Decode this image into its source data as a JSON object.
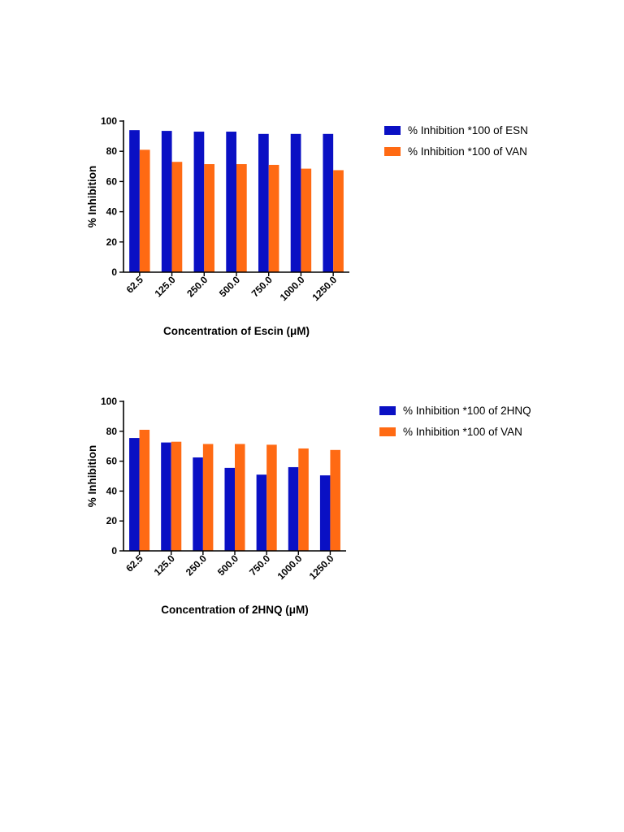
{
  "colors": {
    "series_a": "#0a10c4",
    "series_b": "#ff6a13",
    "axis": "#000000",
    "background": "#ffffff"
  },
  "chart_data": [
    {
      "type": "bar",
      "title": "",
      "xlabel": "Concentration of Escin (μM)",
      "ylabel": "% Inhibition",
      "ylim": [
        0,
        100
      ],
      "yticks": [
        "0",
        "20",
        "40",
        "60",
        "80",
        "100"
      ],
      "categories": [
        "62.5",
        "125.0",
        "250.0",
        "500.0",
        "750.0",
        "1000.0",
        "1250.0"
      ],
      "legend_position": "right",
      "series": [
        {
          "name": "% Inhibition *100 of ESN",
          "color": "#0a10c4",
          "values": [
            94,
            93.5,
            93,
            93,
            91.5,
            91.5,
            91.5
          ]
        },
        {
          "name": "% Inhibition *100 of VAN",
          "color": "#ff6a13",
          "values": [
            81,
            73,
            71.5,
            71.5,
            71,
            68.5,
            67.5
          ]
        }
      ]
    },
    {
      "type": "bar",
      "title": "",
      "xlabel": "Concentration of 2HNQ (μM)",
      "ylabel": "% Inhibition",
      "ylim": [
        0,
        100
      ],
      "yticks": [
        "0",
        "20",
        "40",
        "60",
        "80",
        "100"
      ],
      "categories": [
        "62.5",
        "125.0",
        "250.0",
        "500.0",
        "750.0",
        "1000.0",
        "1250.0"
      ],
      "legend_position": "right",
      "series": [
        {
          "name": "% Inhibition *100 of 2HNQ",
          "color": "#0a10c4",
          "values": [
            75.5,
            72.5,
            62.5,
            55.5,
            51,
            56,
            50.5
          ]
        },
        {
          "name": "% Inhibition *100 of VAN",
          "color": "#ff6a13",
          "values": [
            81,
            73,
            71.5,
            71.5,
            71,
            68.5,
            67.5
          ]
        }
      ]
    }
  ]
}
